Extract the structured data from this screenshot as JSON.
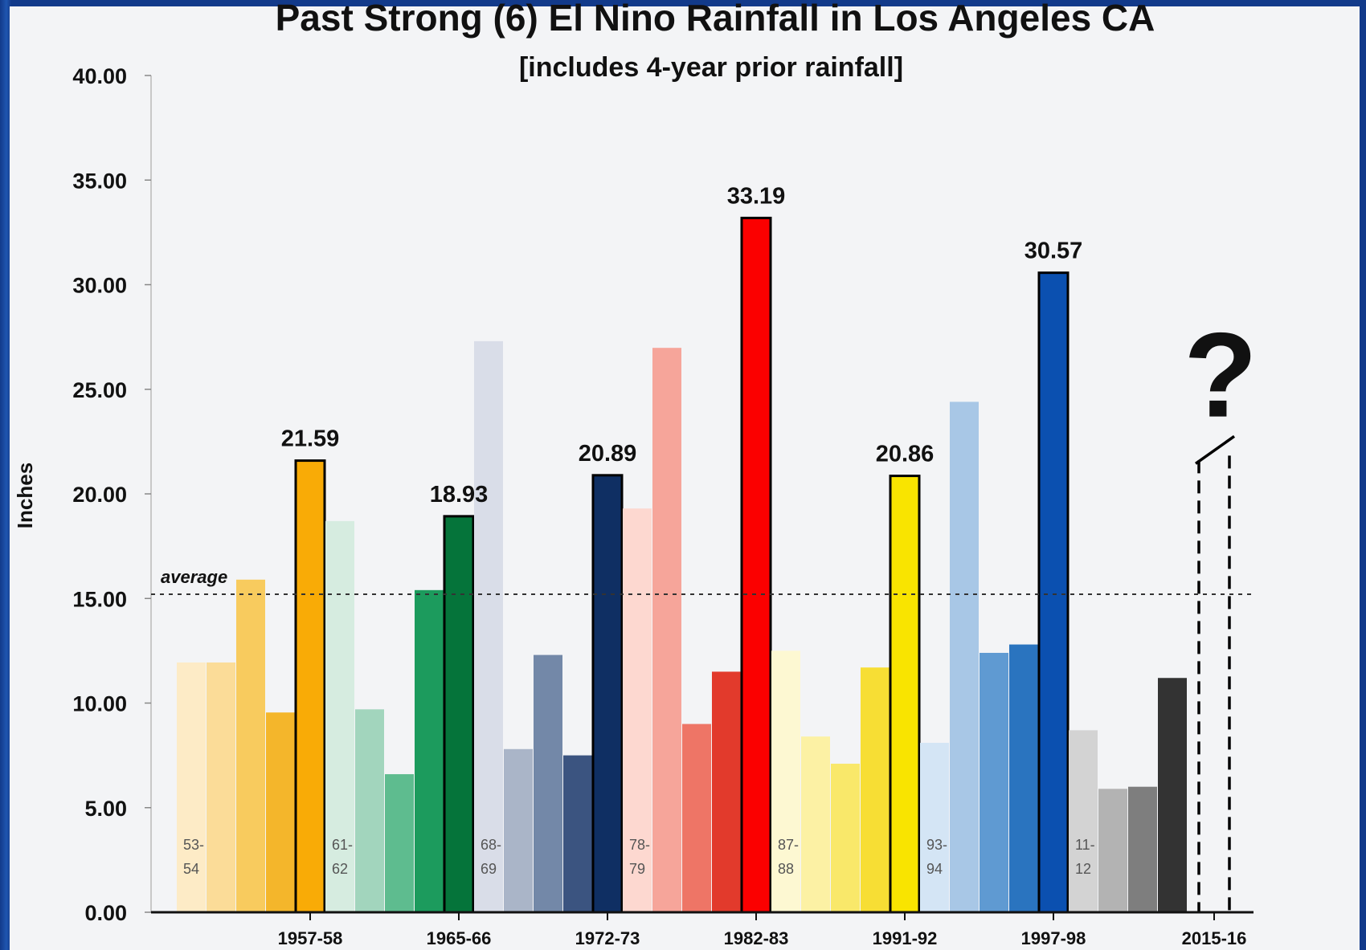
{
  "chart_data": {
    "type": "bar",
    "title": "Past Strong (6) El Nino Rainfall in Los Angeles CA",
    "subtitle": "[includes 4-year prior rainfall]",
    "ylabel": "Inches",
    "xlabel": "",
    "ylim": [
      0,
      40
    ],
    "yticks": [
      "0.00",
      "5.00",
      "10.00",
      "15.00",
      "20.00",
      "25.00",
      "30.00",
      "35.00",
      "40.00"
    ],
    "average": 15.2,
    "average_label": "average",
    "x_tick_labels": [
      "1957-58",
      "1965-66",
      "1972-73",
      "1982-83",
      "1991-92",
      "1997-98",
      "2015-16"
    ],
    "groups": [
      {
        "name": "1957-58",
        "colors": [
          "#fdebc6",
          "#fbdc98",
          "#f8cb5e",
          "#f4b62b",
          "#f9ab06"
        ],
        "values": [
          11.94,
          11.94,
          15.9,
          9.55,
          21.59
        ],
        "start_label": "53-\n54",
        "el_nino_label": "21.59"
      },
      {
        "name": "1965-66",
        "colors": [
          "#d6ece0",
          "#a2d5bd",
          "#5ebc8f",
          "#1c9b5d",
          "#05743a"
        ],
        "values": [
          18.7,
          9.7,
          6.6,
          15.4,
          18.93
        ],
        "start_label": "61-\n62",
        "el_nino_label": "18.93"
      },
      {
        "name": "1972-73",
        "colors": [
          "#d9dde8",
          "#aab5c8",
          "#7388a8",
          "#3b5480",
          "#0f2f63"
        ],
        "values": [
          27.3,
          7.8,
          12.3,
          7.5,
          20.89
        ],
        "start_label": "68-\n69",
        "el_nino_label": "20.89"
      },
      {
        "name": "1982-83",
        "colors": [
          "#fdd8d0",
          "#f6a59a",
          "#ee7566",
          "#e23a2c",
          "#fb0000"
        ],
        "values": [
          19.3,
          26.98,
          9.0,
          11.5,
          33.19
        ],
        "start_label": "78-\n79",
        "el_nino_label": "33.19"
      },
      {
        "name": "1991-92",
        "colors": [
          "#fdf8d2",
          "#fcf1a4",
          "#f9e86a",
          "#f7de34",
          "#f9e400"
        ],
        "values": [
          12.5,
          8.4,
          7.1,
          11.7,
          20.86
        ],
        "start_label": "87-\n88",
        "el_nino_label": "20.86"
      },
      {
        "name": "1997-98",
        "colors": [
          "#d4e5f5",
          "#a8c7e6",
          "#5f9ad2",
          "#2a74bf",
          "#0b50b0"
        ],
        "values": [
          8.1,
          24.4,
          12.4,
          12.8,
          30.57
        ],
        "start_label": "93-\n94",
        "el_nino_label": "30.57"
      },
      {
        "name": "2015-16",
        "colors": [
          "#d3d3d3",
          "#b3b3b3",
          "#7e7e7e",
          "#333333"
        ],
        "values": [
          8.7,
          5.9,
          6.0,
          11.2
        ],
        "start_label": "11-\n12",
        "el_nino_label": "",
        "pending_label": "?"
      }
    ]
  }
}
